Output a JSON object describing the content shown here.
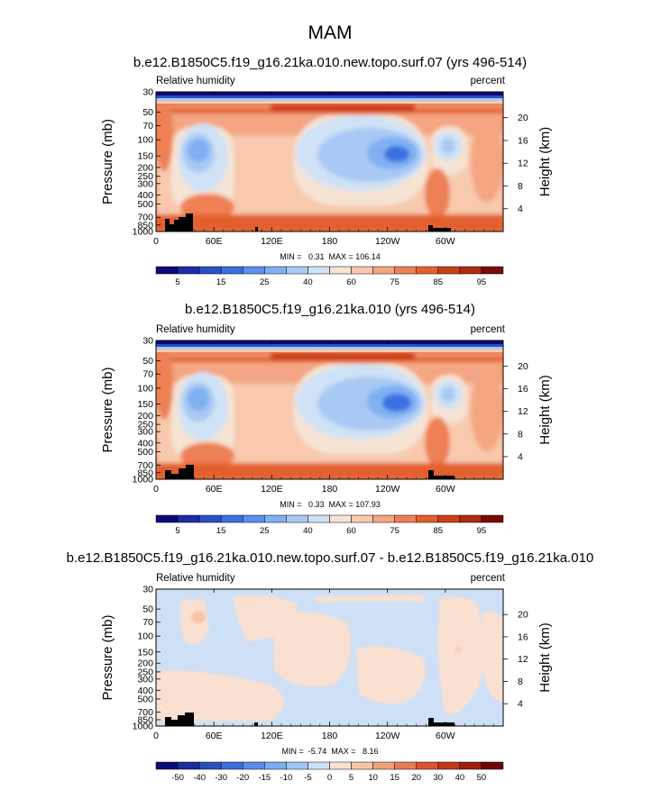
{
  "page_title": "MAM",
  "chart_data": [
    {
      "type": "heatmap",
      "title": "b.e12.B1850C5.f19_g16.21ka.010.new.topo.surf.07 (yrs 496-514)",
      "left_label": "Relative humidity",
      "right_label": "percent",
      "ylabel": "Pressure (mb)",
      "ylabel_right": "Height (km)",
      "x_ticks": [
        "0",
        "60E",
        "120E",
        "180",
        "120W",
        "60W"
      ],
      "y_ticks": [
        "30",
        "50",
        "70",
        "100",
        "150",
        "200",
        "250",
        "300",
        "400",
        "500",
        "700",
        "850",
        "1000"
      ],
      "height_ticks": [
        "20",
        "16",
        "12",
        "8",
        "4"
      ],
      "stats": "MIN =   0.31  MAX = 106.14",
      "colorbar_ticks": [
        "5",
        "15",
        "25",
        "40",
        "60",
        "75",
        "85",
        "95"
      ]
    },
    {
      "type": "heatmap",
      "title": "b.e12.B1850C5.f19_g16.21ka.010 (yrs 496-514)",
      "left_label": "Relative humidity",
      "right_label": "percent",
      "ylabel": "Pressure (mb)",
      "ylabel_right": "Height (km)",
      "x_ticks": [
        "0",
        "60E",
        "120E",
        "180",
        "120W",
        "60W"
      ],
      "y_ticks": [
        "30",
        "50",
        "70",
        "100",
        "150",
        "200",
        "250",
        "300",
        "400",
        "500",
        "700",
        "850",
        "1000"
      ],
      "height_ticks": [
        "20",
        "16",
        "12",
        "8",
        "4"
      ],
      "stats": "MIN =   0.33  MAX = 107.93",
      "colorbar_ticks": [
        "5",
        "15",
        "25",
        "40",
        "60",
        "75",
        "85",
        "95"
      ]
    },
    {
      "type": "heatmap",
      "title": "b.e12.B1850C5.f19_g16.21ka.010.new.topo.surf.07 - b.e12.B1850C5.f19_g16.21ka.010",
      "left_label": "Relative humidity",
      "right_label": "percent",
      "ylabel": "Pressure (mb)",
      "ylabel_right": "Height (km)",
      "x_ticks": [
        "0",
        "60E",
        "120E",
        "180",
        "120W",
        "60W"
      ],
      "y_ticks": [
        "30",
        "50",
        "70",
        "100",
        "150",
        "200",
        "250",
        "300",
        "400",
        "500",
        "700",
        "850",
        "1000"
      ],
      "height_ticks": [
        "20",
        "16",
        "12",
        "8",
        "4"
      ],
      "stats": "MIN =  -5.74  MAX =   8.16",
      "colorbar_ticks": [
        "-50",
        "-40",
        "-30",
        "-20",
        "-15",
        "-10",
        "-5",
        "0",
        "5",
        "10",
        "15",
        "20",
        "30",
        "40",
        "50"
      ]
    }
  ],
  "colors": {
    "rh_scale": [
      "#0a0a78",
      "#1c2ea5",
      "#2a50c8",
      "#3a70e0",
      "#5a90ee",
      "#7fb0f2",
      "#a8c9f4",
      "#d0e2f6",
      "#f5e3d4",
      "#f8c9ad",
      "#f4a582",
      "#ee8055",
      "#e3602e",
      "#cc4018",
      "#b02a10",
      "#7a0a04"
    ],
    "diff_scale": [
      "#0a0a78",
      "#1a2ea0",
      "#2a50c0",
      "#3a6ed8",
      "#5a8eea",
      "#7aaef2",
      "#a0c6f4",
      "#cde0f6",
      "#fae0d0",
      "#f8c4a8",
      "#f2a07c",
      "#e87a52",
      "#d85530",
      "#c03818",
      "#9a200c",
      "#6e0804"
    ]
  }
}
